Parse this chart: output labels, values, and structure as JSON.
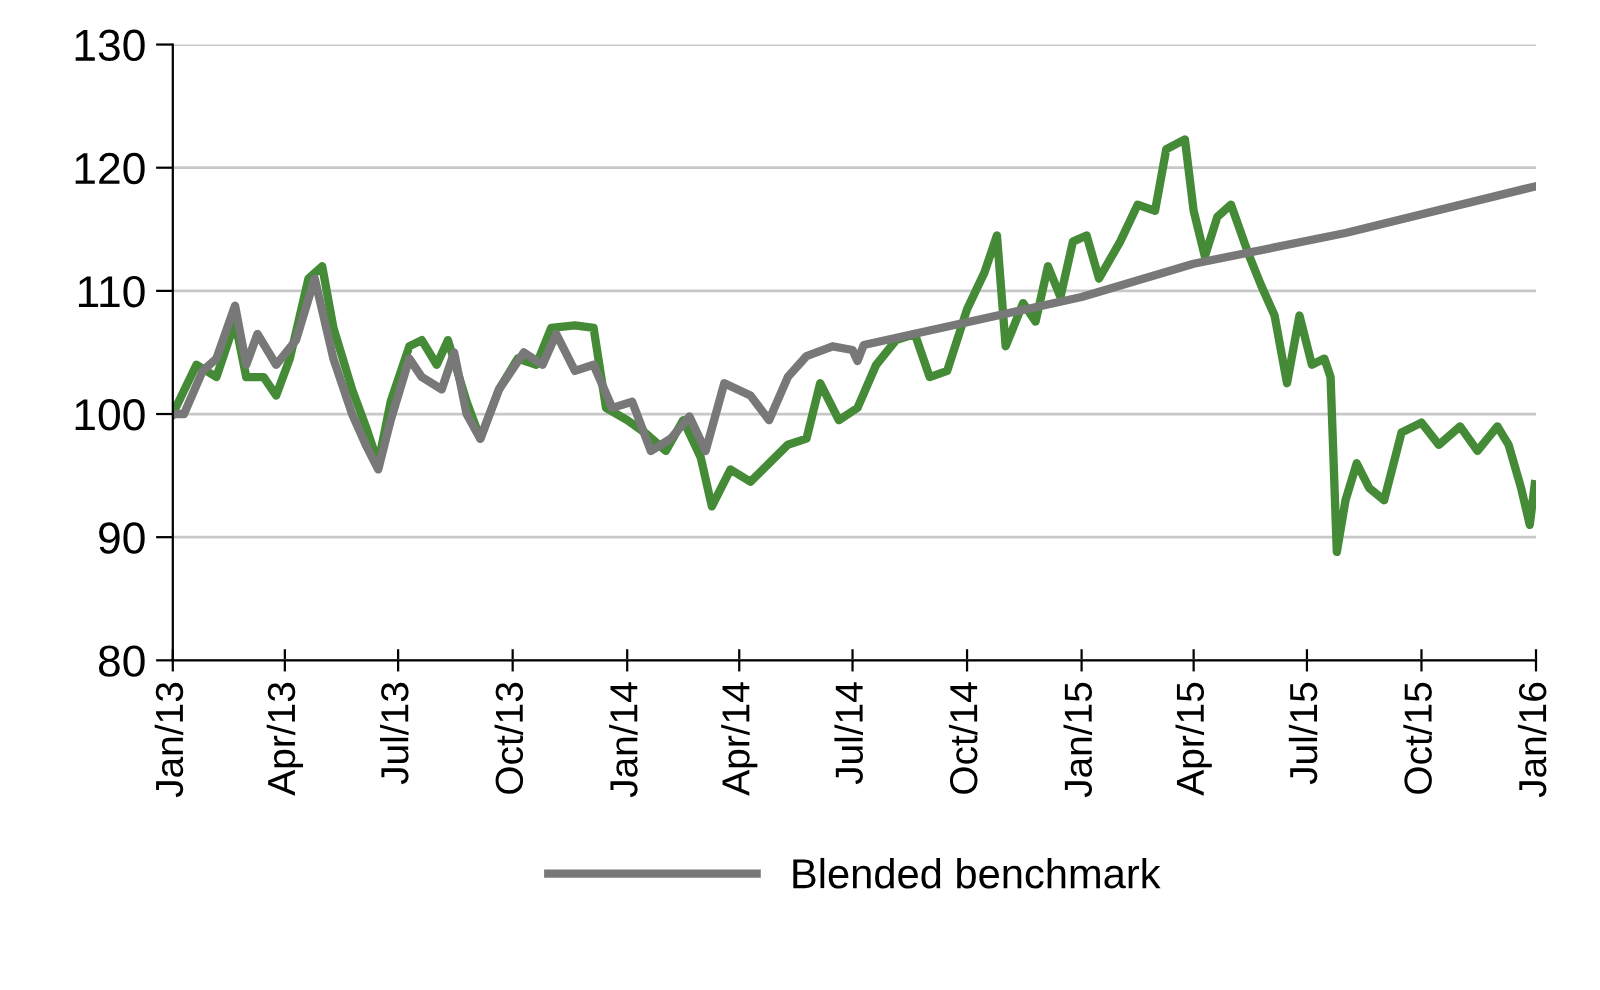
{
  "chart_data": {
    "type": "line",
    "x": [
      "2013-01-01",
      "2013-01-20",
      "2013-02-05",
      "2013-02-20",
      "2013-03-01",
      "2013-03-15",
      "2013-03-25",
      "2013-04-05",
      "2013-04-20",
      "2013-05-01",
      "2013-05-10",
      "2013-05-25",
      "2013-06-05",
      "2013-06-15",
      "2013-06-25",
      "2013-07-10",
      "2013-07-20",
      "2013-08-01",
      "2013-08-10",
      "2013-08-25",
      "2013-09-05",
      "2013-09-20",
      "2013-10-05",
      "2013-10-20",
      "2013-11-01",
      "2013-11-20",
      "2013-12-05",
      "2013-12-15",
      "2014-01-01",
      "2014-01-15",
      "2014-02-01",
      "2014-02-15",
      "2014-03-01",
      "2014-03-10",
      "2014-03-25",
      "2014-04-10",
      "2014-04-25",
      "2014-05-10",
      "2014-05-25",
      "2014-06-05",
      "2014-06-20",
      "2014-07-05",
      "2014-07-20",
      "2014-08-05",
      "2014-08-20",
      "2014-09-01",
      "2014-09-15",
      "2014-10-01",
      "2014-10-15",
      "2014-10-25",
      "2014-11-01",
      "2014-11-15",
      "2014-11-25",
      "2014-12-05",
      "2014-12-15",
      "2014-12-25",
      "2015-01-05",
      "2015-01-15",
      "2015-02-01",
      "2015-02-15",
      "2015-03-01",
      "2015-03-10",
      "2015-03-25",
      "2015-04-01",
      "2015-04-10",
      "2015-04-20",
      "2015-05-01",
      "2015-05-15",
      "2015-05-25",
      "2015-06-05",
      "2015-06-15",
      "2015-06-25",
      "2015-07-05",
      "2015-07-15",
      "2015-07-20",
      "2015-07-25",
      "2015-08-01",
      "2015-08-10",
      "2015-08-20",
      "2015-09-01",
      "2015-09-15",
      "2015-10-01",
      "2015-10-15",
      "2015-11-01",
      "2015-11-15",
      "2015-12-01",
      "2015-12-10",
      "2015-12-20",
      "2015-12-27",
      "2015-12-31"
    ],
    "series": [
      {
        "color": "#458b37",
        "values": [
          100,
          104,
          103,
          107.5,
          103,
          103,
          101.5,
          104.5,
          111,
          112,
          107,
          102,
          99,
          96,
          101,
          105.5,
          106,
          104,
          106,
          101,
          98,
          102,
          104.5,
          104,
          107,
          107.2,
          107,
          100.5,
          99.5,
          98.5,
          97,
          99.5,
          96.5,
          92.5,
          95.5,
          94.5,
          96,
          97.5,
          98,
          102.5,
          99.5,
          100.5,
          104,
          106,
          106.5,
          103,
          103.5,
          108.5,
          111.5,
          114.5,
          105.5,
          109,
          107.5,
          112,
          109.5,
          114,
          114.5,
          111,
          114,
          117,
          116.5,
          121.5,
          122.3,
          116.5,
          112.8,
          116,
          117,
          113,
          110.5,
          108,
          102.5,
          108,
          104,
          104.5,
          103,
          88.8,
          93,
          96,
          94,
          93,
          98.5,
          99.3,
          97.5,
          99,
          97,
          99,
          97.5,
          94,
          91,
          94.3
        ]
      },
      {
        "name": "Blended benchmark",
        "color": "#787878",
        "x": [
          "2013-01-01",
          "2013-01-10",
          "2013-01-25",
          "2013-02-05",
          "2013-02-20",
          "2013-03-01",
          "2013-03-10",
          "2013-03-25",
          "2013-04-10",
          "2013-04-25",
          "2013-05-10",
          "2013-05-25",
          "2013-06-05",
          "2013-06-15",
          "2013-06-25",
          "2013-07-10",
          "2013-07-20",
          "2013-08-05",
          "2013-08-15",
          "2013-08-25",
          "2013-09-05",
          "2013-09-20",
          "2013-10-10",
          "2013-10-25",
          "2013-11-05",
          "2013-11-20",
          "2013-12-05",
          "2013-12-20",
          "2014-01-05",
          "2014-01-20",
          "2014-02-05",
          "2014-02-20",
          "2014-03-05",
          "2014-03-20",
          "2014-04-10",
          "2014-04-25",
          "2014-05-10",
          "2014-05-25",
          "2014-06-15",
          "2014-07-01",
          "2014-07-05",
          "2014-07-10",
          "2015-01-01",
          "2015-04-01",
          "2015-08-01",
          "2016-01-01"
        ],
        "values": [
          100,
          100,
          103.5,
          104.5,
          108.8,
          104,
          106.5,
          104,
          106,
          111,
          104.5,
          100,
          97.5,
          95.5,
          99.5,
          104.5,
          103,
          102,
          105,
          100,
          98,
          102,
          105,
          104,
          106.5,
          103.5,
          104,
          100.5,
          101,
          97,
          98,
          99.8,
          97,
          102.5,
          101.5,
          99.5,
          103,
          104.7,
          105.5,
          105.2,
          104.3,
          105.6,
          109.5,
          112.2,
          114.7,
          118.5
        ]
      }
    ],
    "ylim": [
      80,
      130
    ],
    "yticks": [
      80,
      90,
      100,
      110,
      120,
      130
    ],
    "xlim": [
      "2013-01-01",
      "2016-01-01"
    ],
    "xticks": [
      {
        "value": "2013-01-01",
        "label": "Jan/13"
      },
      {
        "value": "2013-04-01",
        "label": "Apr/13"
      },
      {
        "value": "2013-07-01",
        "label": "Jul/13"
      },
      {
        "value": "2013-10-01",
        "label": "Oct/13"
      },
      {
        "value": "2014-01-01",
        "label": "Jan/14"
      },
      {
        "value": "2014-04-01",
        "label": "Apr/14"
      },
      {
        "value": "2014-07-01",
        "label": "Jul/14"
      },
      {
        "value": "2014-10-01",
        "label": "Oct/14"
      },
      {
        "value": "2015-01-01",
        "label": "Jan/15"
      },
      {
        "value": "2015-04-01",
        "label": "Apr/15"
      },
      {
        "value": "2015-07-01",
        "label": "Jul/15"
      },
      {
        "value": "2015-10-01",
        "label": "Oct/15"
      },
      {
        "value": "2016-01-01",
        "label": "Jan/16"
      }
    ],
    "grid": "y",
    "legend": "bottom"
  }
}
